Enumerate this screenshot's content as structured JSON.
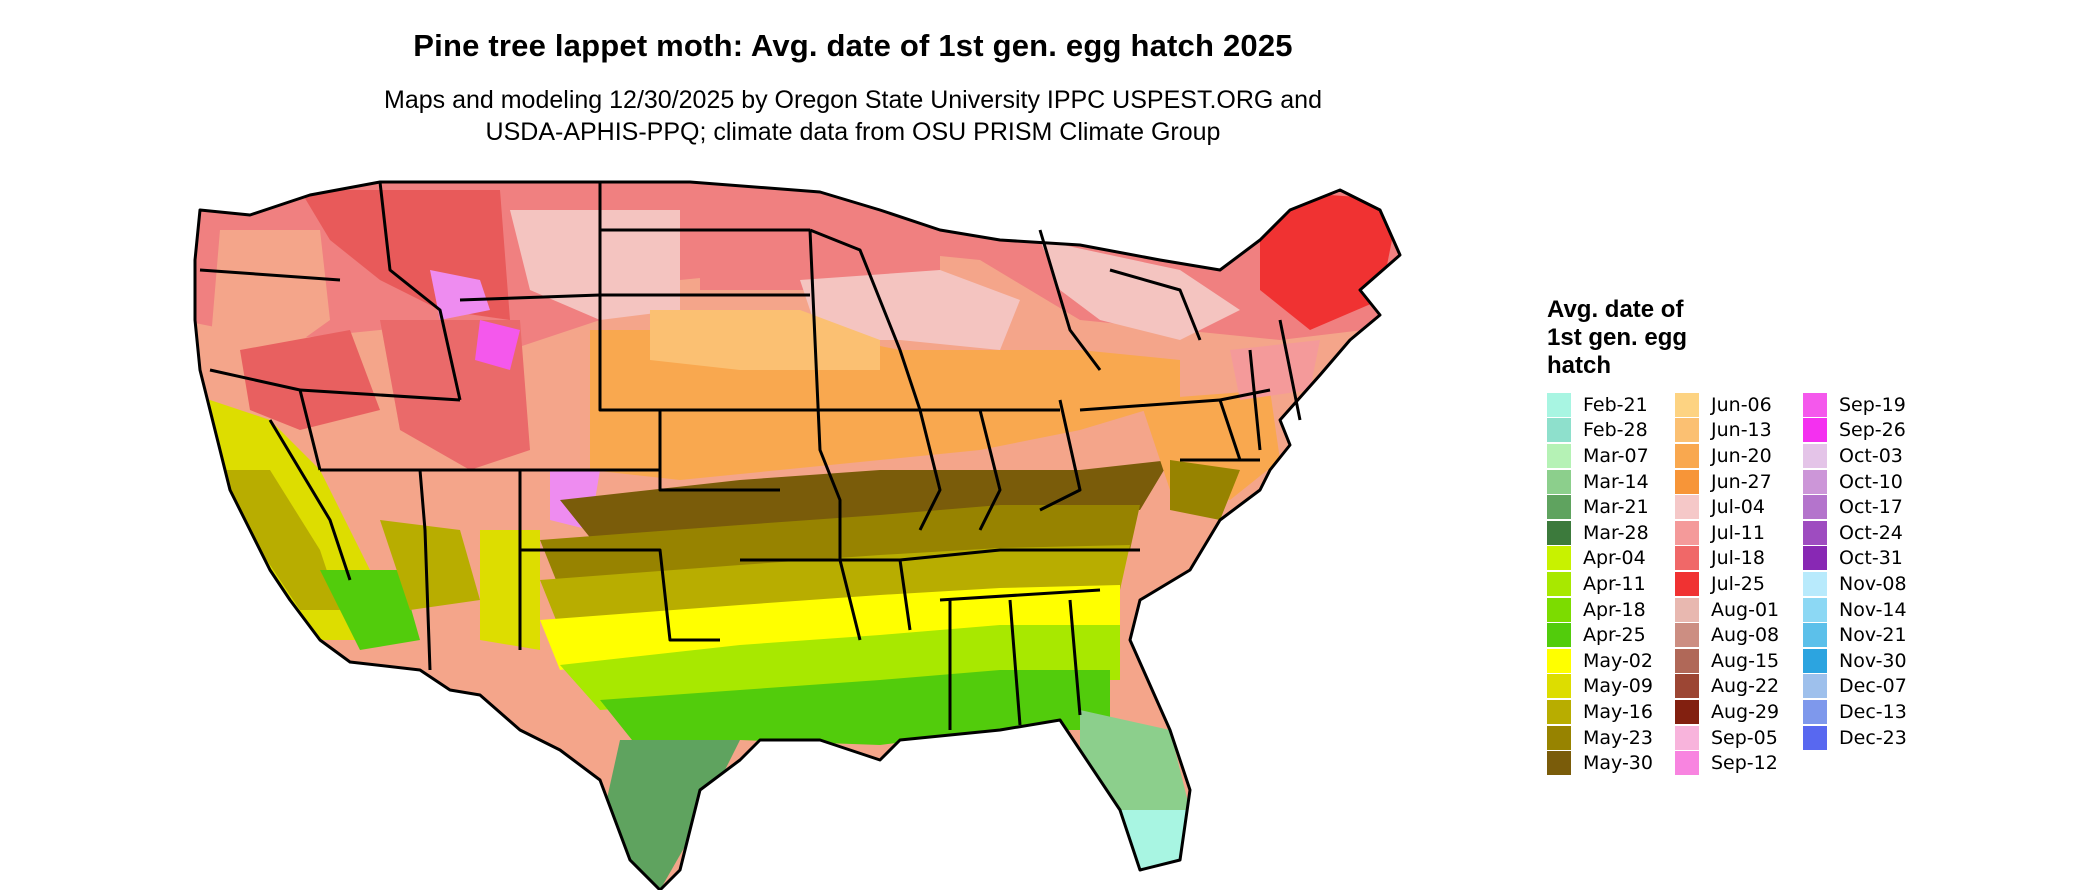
{
  "title": "Pine tree lappet moth: Avg. date of 1st gen. egg hatch 2025",
  "subtitle_line1": "Maps and modeling 12/30/2025 by Oregon State University IPPC USPEST.ORG and",
  "subtitle_line2": "USDA-APHIS-PPQ; climate data from OSU PRISM Climate Group",
  "legend": {
    "title": "Avg. date of 1st gen. egg hatch",
    "columns": [
      [
        {
          "label": "Feb-21",
          "color": "#a8f5e2"
        },
        {
          "label": "Feb-28",
          "color": "#8ee0cc"
        },
        {
          "label": "Mar-07",
          "color": "#b5f2b5"
        },
        {
          "label": "Mar-14",
          "color": "#8ccf8c"
        },
        {
          "label": "Mar-21",
          "color": "#5fa35f"
        },
        {
          "label": "Mar-28",
          "color": "#3c7a3c"
        },
        {
          "label": "Apr-04",
          "color": "#c8f200"
        },
        {
          "label": "Apr-11",
          "color": "#a8e800"
        },
        {
          "label": "Apr-18",
          "color": "#7cdc00"
        },
        {
          "label": "Apr-25",
          "color": "#52cc0c"
        },
        {
          "label": "May-02",
          "color": "#ffff00"
        },
        {
          "label": "May-09",
          "color": "#dddd00"
        },
        {
          "label": "May-16",
          "color": "#b8ad00"
        },
        {
          "label": "May-23",
          "color": "#978300"
        },
        {
          "label": "May-30",
          "color": "#7a5c0a"
        }
      ],
      [
        {
          "label": "Jun-06",
          "color": "#fdd382"
        },
        {
          "label": "Jun-13",
          "color": "#fbc072"
        },
        {
          "label": "Jun-20",
          "color": "#f9a84f"
        },
        {
          "label": "Jun-27",
          "color": "#f79538"
        },
        {
          "label": "Jul-04",
          "color": "#f5c8c8"
        },
        {
          "label": "Jul-11",
          "color": "#f49a9a"
        },
        {
          "label": "Jul-18",
          "color": "#f06868"
        },
        {
          "label": "Jul-25",
          "color": "#f03232"
        },
        {
          "label": "Aug-01",
          "color": "#e8b8b0"
        },
        {
          "label": "Aug-08",
          "color": "#cc8e82"
        },
        {
          "label": "Aug-15",
          "color": "#b06858"
        },
        {
          "label": "Aug-22",
          "color": "#9c4634"
        },
        {
          "label": "Aug-29",
          "color": "#822010"
        },
        {
          "label": "Sep-05",
          "color": "#f8b4dc"
        },
        {
          "label": "Sep-12",
          "color": "#f884e0"
        }
      ],
      [
        {
          "label": "Sep-19",
          "color": "#f458ec"
        },
        {
          "label": "Sep-26",
          "color": "#f430f0"
        },
        {
          "label": "Oct-03",
          "color": "#e4c4e8"
        },
        {
          "label": "Oct-10",
          "color": "#cc96d8"
        },
        {
          "label": "Oct-17",
          "color": "#b474cc"
        },
        {
          "label": "Oct-24",
          "color": "#9e4cc0"
        },
        {
          "label": "Oct-31",
          "color": "#8828b4"
        },
        {
          "label": "Nov-08",
          "color": "#b8eafc"
        },
        {
          "label": "Nov-14",
          "color": "#8cd8f4"
        },
        {
          "label": "Nov-21",
          "color": "#5cc0ea"
        },
        {
          "label": "Nov-30",
          "color": "#2ca4e0"
        },
        {
          "label": "Dec-07",
          "color": "#9ec0ec"
        },
        {
          "label": "Dec-13",
          "color": "#7e98ec"
        },
        {
          "label": "Dec-23",
          "color": "#5868f0"
        }
      ]
    ]
  }
}
